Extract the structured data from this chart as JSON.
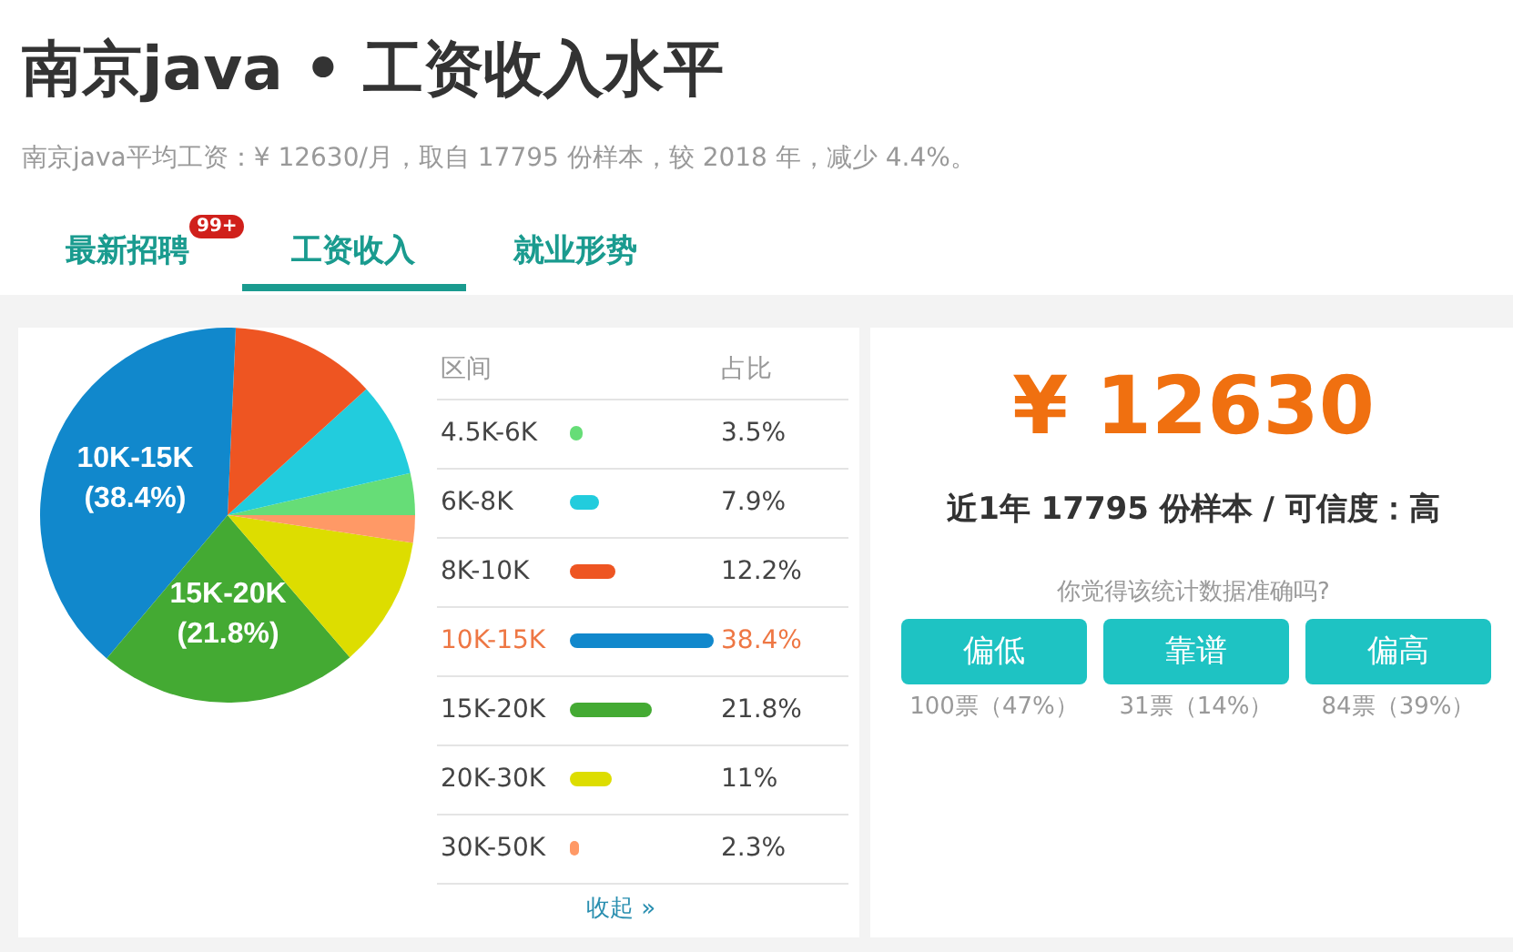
{
  "chart_data": {
    "type": "pie",
    "title": "南京java • 工资收入水平",
    "subtitle": "南京java平均工资：¥ 12630/月，取自 17795 份样本，较 2018 年，减少 4.4%。",
    "categories": [
      "4.5K-6K",
      "6K-8K",
      "8K-10K",
      "10K-15K",
      "15K-20K",
      "20K-30K",
      "30K-50K"
    ],
    "values": [
      3.5,
      7.9,
      12.2,
      38.4,
      21.8,
      11,
      2.3
    ],
    "colors": [
      "#66dd77",
      "#22ccdd",
      "#ee5522",
      "#1188cc",
      "#44aa33",
      "#dddd00",
      "#ff9966"
    ],
    "legend": "right",
    "value_labels": [
      null,
      null,
      null,
      "(38.4%)",
      "(21.8%)",
      null,
      null
    ],
    "annotations": [
      "3.5%",
      "7.9%",
      "12.2%",
      "38.4%",
      "21.8%",
      "11%",
      "2.3%",
      "最新招聘",
      "99+",
      "工资收入",
      "就业形势",
      "区间",
      "占比",
      "收起 »",
      "¥ 12630",
      "近1年 17795 份样本 / 可信度：高",
      "你觉得该统计数据准确吗?",
      "偏低",
      "靠谱",
      "偏高",
      "100票（47%）",
      "31票（14%）",
      "84票（39%）"
    ]
  }
}
